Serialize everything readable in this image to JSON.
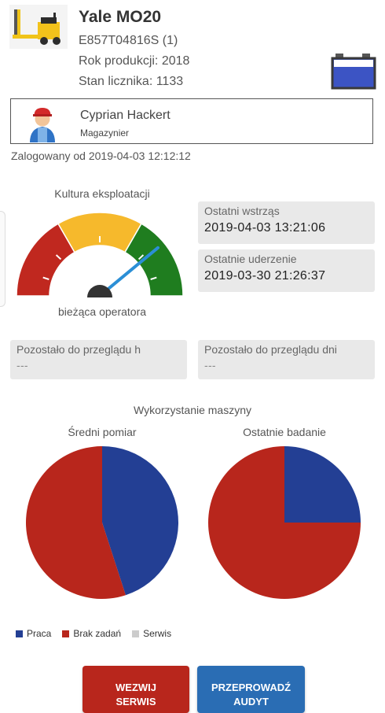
{
  "header": {
    "model": "Yale MO20",
    "serial": "E857T04816S (1)",
    "year_line": "Rok produkcji: 2018",
    "counter_line": "Stan licznika: 1133"
  },
  "operator": {
    "name": "Cyprian Hackert",
    "role": "Magazynier",
    "logged_in": "Zalogowany od 2019-04-03 12:12:12"
  },
  "gauge": {
    "title": "Kultura eksploatacji",
    "subtitle": "bieżąca operatora",
    "needle_fraction": 0.78,
    "colors": {
      "bad": "#c0281f",
      "mid": "#f6b92c",
      "good": "#1f7d1f",
      "needle": "#2b8fd6"
    }
  },
  "info": {
    "last_shock_label": "Ostatni wstrząs",
    "last_shock_value": "2019-04-03 13:21:06",
    "last_hit_label": "Ostatnie uderzenie",
    "last_hit_value": "2019-03-30 21:26:37",
    "remaining_h_label": "Pozostało do przeglądu h",
    "remaining_h_value": "---",
    "remaining_days_label": "Pozostało do przeglądu dni",
    "remaining_days_value": "---"
  },
  "usage": {
    "title": "Wykorzystanie maszyny",
    "legend": [
      {
        "label": "Praca",
        "color": "#233f94"
      },
      {
        "label": "Brak zadań",
        "color": "#b8261c"
      },
      {
        "label": "Serwis",
        "color": "#cccccc"
      }
    ]
  },
  "chart_data": [
    {
      "type": "pie",
      "title": "Średni pomiar",
      "categories": [
        "Praca",
        "Brak zadań",
        "Serwis"
      ],
      "values": [
        45,
        55,
        0
      ]
    },
    {
      "type": "pie",
      "title": "Ostatnie badanie",
      "categories": [
        "Praca",
        "Brak zadań",
        "Serwis"
      ],
      "values": [
        25,
        75,
        0
      ]
    }
  ],
  "buttons": {
    "service_line1": "WEZWIJ",
    "service_line2": "SERWIS",
    "audit_line1": "PRZEPROWADŹ",
    "audit_line2": "AUDYT",
    "service_color": "#b8261c",
    "audit_color": "#2a6db4"
  }
}
